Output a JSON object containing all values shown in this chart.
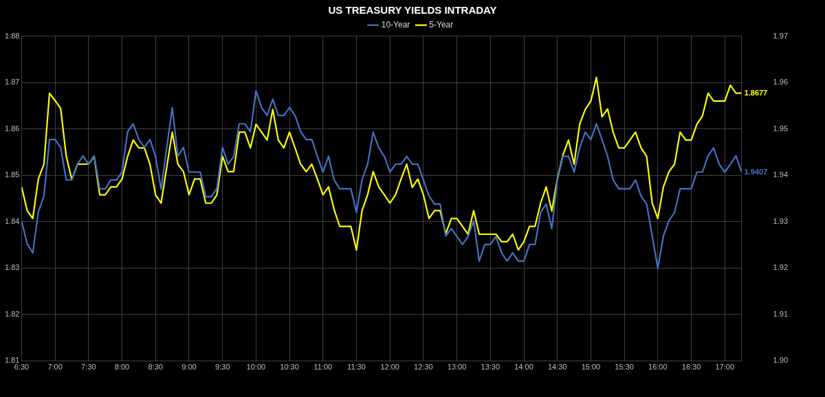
{
  "chart_data": {
    "type": "line",
    "title": "US TREASURY YIELDS INTRADAY",
    "x": [
      6.5,
      6.5833,
      6.6667,
      6.75,
      6.8333,
      6.9167,
      7,
      7.0833,
      7.1667,
      7.25,
      7.3333,
      7.4167,
      7.5,
      7.5833,
      7.6667,
      7.75,
      7.8333,
      7.9167,
      8,
      8.0833,
      8.1667,
      8.25,
      8.3333,
      8.4167,
      8.5,
      8.5833,
      8.6667,
      8.75,
      8.8333,
      8.9167,
      9,
      9.0833,
      9.1667,
      9.25,
      9.3333,
      9.4167,
      9.5,
      9.5833,
      9.6667,
      9.75,
      9.8333,
      9.9167,
      10,
      10.0833,
      10.1667,
      10.25,
      10.3333,
      10.4167,
      10.5,
      10.5833,
      10.6667,
      10.75,
      10.8333,
      10.9167,
      11,
      11.0833,
      11.1667,
      11.25,
      11.3333,
      11.4167,
      11.5,
      11.5833,
      11.6667,
      11.75,
      11.8333,
      11.9167,
      12,
      12.0833,
      12.1667,
      12.25,
      12.3333,
      12.4167,
      12.5,
      12.5833,
      12.6667,
      12.75,
      12.8333,
      12.9167,
      13,
      13.0833,
      13.1667,
      13.25,
      13.3333,
      13.4167,
      13.5,
      13.5833,
      13.6667,
      13.75,
      13.8333,
      13.9167,
      14,
      14.0833,
      14.1667,
      14.25,
      14.3333,
      14.4167,
      14.5,
      14.5833,
      14.6667,
      14.75,
      14.8333,
      14.9167,
      15,
      15.0833,
      15.1667,
      15.25,
      15.3333,
      15.4167,
      15.5,
      15.5833,
      15.6667,
      15.75,
      15.8333,
      15.9167,
      16,
      16.0833,
      16.1667,
      16.25,
      16.3333,
      16.4167,
      16.5,
      16.5833,
      16.6667,
      16.75,
      16.8333,
      16.9167,
      17,
      17.0833,
      17.1667,
      17.25
    ],
    "series": [
      {
        "name": "5-Year",
        "color": "#ffff00",
        "values": [
          1.8475,
          1.8424,
          1.8407,
          1.8492,
          1.8524,
          1.8677,
          1.8661,
          1.8644,
          1.8541,
          1.8491,
          1.8524,
          1.8524,
          1.8524,
          1.8541,
          1.8458,
          1.8458,
          1.8475,
          1.8475,
          1.8492,
          1.8541,
          1.8576,
          1.8559,
          1.8559,
          1.8524,
          1.8458,
          1.844,
          1.8517,
          1.8593,
          1.8524,
          1.8508,
          1.8458,
          1.8492,
          1.8492,
          1.844,
          1.844,
          1.8458,
          1.8541,
          1.8508,
          1.8508,
          1.8593,
          1.8593,
          1.8559,
          1.861,
          1.8593,
          1.8576,
          1.8642,
          1.8576,
          1.8559,
          1.8593,
          1.8559,
          1.8524,
          1.8508,
          1.8524,
          1.8492,
          1.8458,
          1.8475,
          1.8426,
          1.839,
          1.839,
          1.839,
          1.8339,
          1.8424,
          1.8458,
          1.8508,
          1.8475,
          1.8458,
          1.844,
          1.8458,
          1.8492,
          1.8524,
          1.8474,
          1.8492,
          1.8458,
          1.8407,
          1.8424,
          1.8424,
          1.8374,
          1.8407,
          1.8407,
          1.839,
          1.8373,
          1.8424,
          1.8373,
          1.8373,
          1.8373,
          1.8373,
          1.8357,
          1.8357,
          1.8373,
          1.8339,
          1.8357,
          1.839,
          1.839,
          1.844,
          1.8475,
          1.8423,
          1.8492,
          1.8544,
          1.8576,
          1.8524,
          1.861,
          1.8642,
          1.866,
          1.8711,
          1.8626,
          1.8643,
          1.8593,
          1.8559,
          1.8559,
          1.8576,
          1.8593,
          1.8559,
          1.8541,
          1.844,
          1.8407,
          1.8475,
          1.8508,
          1.8524,
          1.8593,
          1.8576,
          1.8576,
          1.861,
          1.8628,
          1.8677,
          1.866,
          1.866,
          1.866,
          1.8694,
          1.8677,
          1.8677
        ],
        "value_labels": [
          null,
          null,
          null,
          null,
          null,
          null,
          null,
          null,
          null,
          null,
          null,
          null,
          null,
          null,
          null,
          null,
          null,
          null,
          null,
          null,
          null,
          null,
          null,
          null,
          null,
          null,
          null,
          null,
          null,
          null,
          null,
          null,
          null,
          null,
          null,
          null,
          null,
          null,
          null,
          null,
          null,
          null,
          null,
          null,
          null,
          null,
          null,
          null,
          null,
          null,
          null,
          null,
          null,
          null,
          null,
          null,
          null,
          null,
          null,
          null,
          null,
          null,
          null,
          null,
          null,
          null,
          null,
          null,
          null,
          null,
          null,
          null,
          null,
          null,
          null,
          null,
          null,
          null,
          null,
          null,
          null,
          null,
          null,
          null,
          null,
          null,
          null,
          null,
          null,
          null,
          null,
          null,
          null,
          null,
          null,
          null,
          null,
          null,
          null,
          null,
          null,
          null,
          null,
          null,
          null,
          null,
          null,
          null,
          null,
          null,
          null,
          null,
          null,
          null,
          null,
          null,
          null,
          null,
          null,
          null,
          null,
          null,
          null,
          null,
          null,
          null,
          null,
          null,
          null,
          "1.8677"
        ]
      },
      {
        "name": "10-Year",
        "color": "#4472c4",
        "axis": "y2",
        "values": [
          1.9302,
          1.9252,
          1.9233,
          1.9321,
          1.9355,
          1.9477,
          1.9477,
          1.946,
          1.939,
          1.939,
          1.9424,
          1.9442,
          1.9424,
          1.9442,
          1.9371,
          1.9371,
          1.939,
          1.939,
          1.9407,
          1.9494,
          1.9511,
          1.9477,
          1.946,
          1.9477,
          1.9441,
          1.937,
          1.9459,
          1.9546,
          1.9441,
          1.946,
          1.9407,
          1.9407,
          1.9407,
          1.9354,
          1.9354,
          1.9372,
          1.946,
          1.9424,
          1.9441,
          1.9511,
          1.9511,
          1.9494,
          1.9582,
          1.9546,
          1.9529,
          1.9564,
          1.9529,
          1.9529,
          1.9546,
          1.9529,
          1.9494,
          1.9477,
          1.9477,
          1.9441,
          1.9407,
          1.9441,
          1.939,
          1.9371,
          1.9371,
          1.9371,
          1.932,
          1.939,
          1.9424,
          1.9493,
          1.9459,
          1.9441,
          1.9407,
          1.9424,
          1.9424,
          1.9441,
          1.9424,
          1.9424,
          1.939,
          1.9355,
          1.9338,
          1.9338,
          1.9269,
          1.9285,
          1.9268,
          1.9251,
          1.9268,
          1.9302,
          1.9215,
          1.9251,
          1.9251,
          1.9268,
          1.9233,
          1.9215,
          1.9233,
          1.9215,
          1.9215,
          1.9251,
          1.9251,
          1.932,
          1.9338,
          1.9285,
          1.939,
          1.9441,
          1.9441,
          1.9407,
          1.9459,
          1.9493,
          1.9477,
          1.9511,
          1.9477,
          1.9441,
          1.939,
          1.9371,
          1.9371,
          1.9371,
          1.939,
          1.9355,
          1.9338,
          1.9269,
          1.92,
          1.9269,
          1.9302,
          1.932,
          1.9371,
          1.9371,
          1.9371,
          1.9407,
          1.9407,
          1.9442,
          1.9459,
          1.9424,
          1.9407,
          1.9424,
          1.9442,
          1.9407
        ],
        "value_labels": [
          null,
          null,
          null,
          null,
          null,
          null,
          null,
          null,
          null,
          null,
          null,
          null,
          null,
          null,
          null,
          null,
          null,
          null,
          null,
          null,
          null,
          null,
          null,
          null,
          null,
          null,
          null,
          null,
          null,
          null,
          null,
          null,
          null,
          null,
          null,
          null,
          null,
          null,
          null,
          null,
          null,
          null,
          null,
          null,
          null,
          null,
          null,
          null,
          null,
          null,
          null,
          null,
          null,
          null,
          null,
          null,
          null,
          null,
          null,
          null,
          null,
          null,
          null,
          null,
          null,
          null,
          null,
          null,
          null,
          null,
          null,
          null,
          null,
          null,
          null,
          null,
          null,
          null,
          null,
          null,
          null,
          null,
          null,
          null,
          null,
          null,
          null,
          null,
          null,
          null,
          null,
          null,
          null,
          null,
          null,
          null,
          null,
          null,
          null,
          null,
          null,
          null,
          null,
          null,
          null,
          null,
          null,
          null,
          null,
          null,
          null,
          null,
          null,
          null,
          null,
          null,
          null,
          null,
          null,
          null,
          null,
          null,
          null,
          null,
          null,
          null,
          null,
          null,
          null,
          "1.9407"
        ]
      }
    ],
    "xlim": [
      6.5,
      17.25
    ],
    "xticks": [
      {
        "value": 6.5,
        "label": "6:30"
      },
      {
        "value": 7,
        "label": "7:00"
      },
      {
        "value": 7.5,
        "label": "7:30"
      },
      {
        "value": 8,
        "label": "8:00"
      },
      {
        "value": 8.5,
        "label": "8:30"
      },
      {
        "value": 9,
        "label": "9:00"
      },
      {
        "value": 9.5,
        "label": "9:30"
      },
      {
        "value": 10,
        "label": "10:00"
      },
      {
        "value": 10.5,
        "label": "10:30"
      },
      {
        "value": 11,
        "label": "11:00"
      },
      {
        "value": 11.5,
        "label": "11:30"
      },
      {
        "value": 12,
        "label": "12:00"
      },
      {
        "value": 12.5,
        "label": "12:30"
      },
      {
        "value": 13,
        "label": "13:00"
      },
      {
        "value": 13.5,
        "label": "13:30"
      },
      {
        "value": 14,
        "label": "14:00"
      },
      {
        "value": 14.5,
        "label": "14:30"
      },
      {
        "value": 15,
        "label": "15:00"
      },
      {
        "value": 15.5,
        "label": "15:30"
      },
      {
        "value": 16,
        "label": "16:00"
      },
      {
        "value": 16.5,
        "label": "16:30"
      },
      {
        "value": 17,
        "label": "17:00"
      }
    ],
    "ylim": [
      1.81,
      1.88
    ],
    "yticks": [
      {
        "value": 1.81,
        "label": "1.81"
      },
      {
        "value": 1.82,
        "label": "1.82"
      },
      {
        "value": 1.83,
        "label": "1.83"
      },
      {
        "value": 1.84,
        "label": "1.84"
      },
      {
        "value": 1.85,
        "label": "1.85"
      },
      {
        "value": 1.86,
        "label": "1.86"
      },
      {
        "value": 1.87,
        "label": "1.87"
      },
      {
        "value": 1.88,
        "label": "1.88"
      }
    ],
    "y2lim": [
      1.9,
      1.97
    ],
    "y2ticks": [
      {
        "value": 1.9,
        "label": "1.90"
      },
      {
        "value": 1.91,
        "label": "1.91"
      },
      {
        "value": 1.92,
        "label": "1.92"
      },
      {
        "value": 1.93,
        "label": "1.93"
      },
      {
        "value": 1.94,
        "label": "1.94"
      },
      {
        "value": 1.95,
        "label": "1.95"
      },
      {
        "value": 1.96,
        "label": "1.96"
      },
      {
        "value": 1.97,
        "label": "1.97"
      }
    ],
    "grid": true,
    "legend": "top",
    "marker": "none",
    "line_style": "solid"
  }
}
